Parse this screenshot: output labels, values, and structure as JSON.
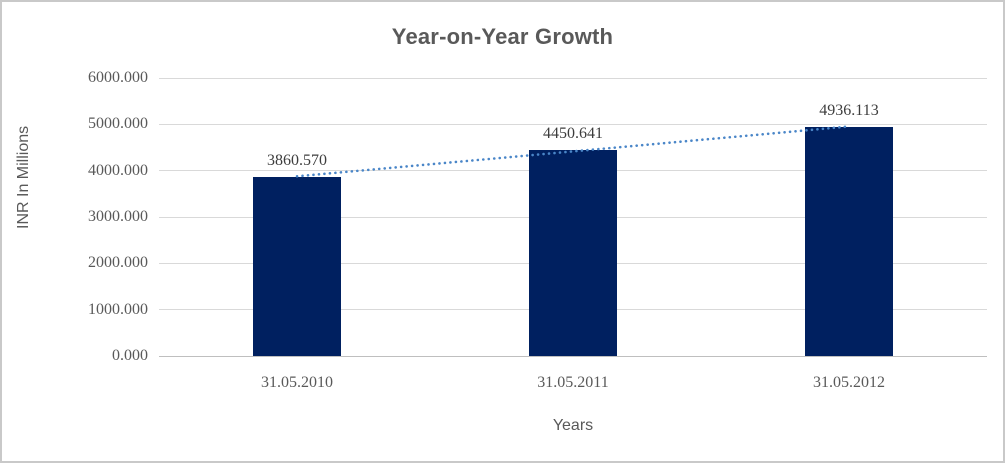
{
  "chart_data": {
    "type": "bar",
    "title": "Year-on-Year Growth",
    "xlabel": "Years",
    "ylabel": "INR In Millions",
    "categories": [
      "31.05.2010",
      "31.05.2011",
      "31.05.2012"
    ],
    "values": [
      3860.57,
      4450.641,
      4936.113
    ],
    "value_labels": [
      "3860.570",
      "4450.641",
      "4936.113"
    ],
    "ylim": [
      0,
      6000
    ],
    "ytick_step": 1000,
    "ytick_labels": [
      "0.000",
      "1000.000",
      "2000.000",
      "3000.000",
      "4000.000",
      "5000.000",
      "6000.000"
    ],
    "grid": "horizontal",
    "legend": "none",
    "trendline": {
      "type": "linear",
      "style": "dotted"
    },
    "colors": {
      "bar": "#002060",
      "trendline": "#4a86c8",
      "gridline": "#d9d9d9",
      "axis_line": "#bfbfbf",
      "title_text": "#595959",
      "tick_text": "#595959",
      "data_label_text": "#3d3d3d",
      "background": "#ffffff",
      "frame_border": "#c9c9c9"
    }
  }
}
